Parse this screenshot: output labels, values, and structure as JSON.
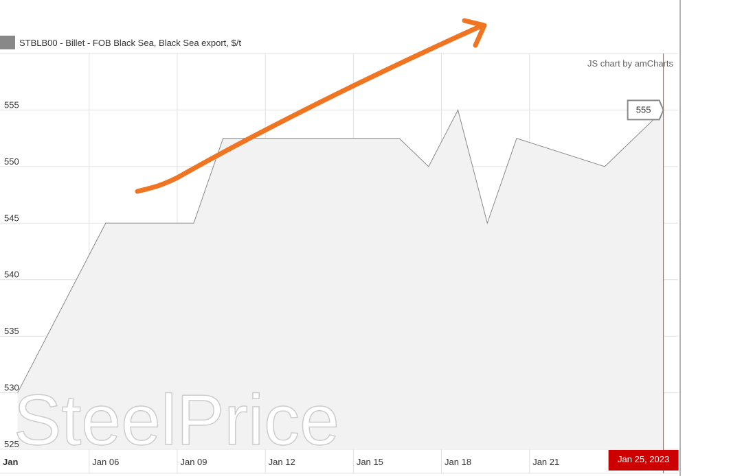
{
  "chart_data": {
    "type": "area",
    "series": [
      {
        "name": "STBLB00 - Billet - FOB Black Sea, Black Sea export, $/t",
        "color": "#888888",
        "x": [
          3,
          6,
          9,
          10,
          16,
          17,
          18,
          19,
          20,
          23,
          25
        ],
        "values": [
          530,
          545,
          545,
          552.5,
          552.5,
          550,
          555,
          545,
          552.5,
          550,
          555
        ]
      }
    ],
    "xlim": [
      2.4,
      25.5
    ],
    "xticks": [
      {
        "value": 3,
        "label": "Jan"
      },
      {
        "value": 6,
        "label": "Jan 06"
      },
      {
        "value": 9,
        "label": "Jan 09"
      },
      {
        "value": 12,
        "label": "Jan 12"
      },
      {
        "value": 15,
        "label": "Jan 15"
      },
      {
        "value": 18,
        "label": "Jan 18"
      },
      {
        "value": 21,
        "label": "Jan 21"
      }
    ],
    "ylim": [
      525,
      560
    ],
    "yticks": [
      525,
      530,
      535,
      540,
      545,
      550,
      555
    ],
    "grid": true,
    "cursor": {
      "value": 25,
      "label": "Jan 25, 2023"
    },
    "credit": "JS chart by amCharts",
    "watermark": "SteelPrice"
  }
}
